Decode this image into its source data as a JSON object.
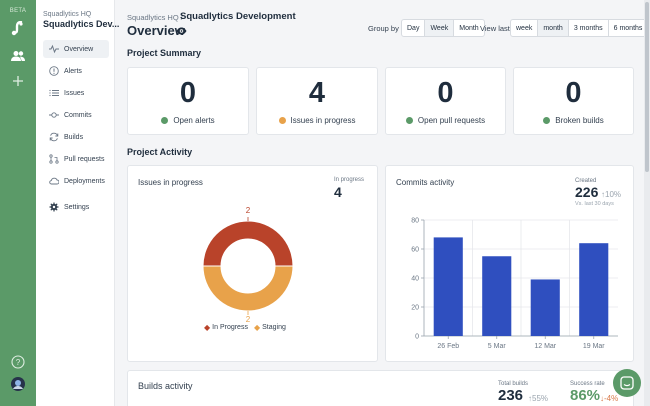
{
  "rail": {
    "beta": "BETA",
    "icons": [
      "logo-icon",
      "team-icon",
      "add-icon",
      "help-icon",
      "user-avatar"
    ]
  },
  "sidebar": {
    "org": "Squadlytics HQ",
    "project": "Squadlytics Dev...",
    "items": [
      {
        "label": "Overview",
        "icon": "pulse-icon",
        "active": true
      },
      {
        "label": "Alerts",
        "icon": "alert-icon"
      },
      {
        "label": "Issues",
        "icon": "list-icon"
      },
      {
        "label": "Commits",
        "icon": "commit-icon"
      },
      {
        "label": "Builds",
        "icon": "refresh-icon"
      },
      {
        "label": "Pull requests",
        "icon": "pull-request-icon"
      },
      {
        "label": "Deployments",
        "icon": "cloud-icon"
      },
      {
        "label": "Settings",
        "icon": "gear-icon"
      }
    ]
  },
  "header": {
    "breadcrumb": "Squadlytics HQ /",
    "title": "Squadlytics Development",
    "page_title": "Overview",
    "group_by_label": "Group by",
    "group_by": [
      "Day",
      "Week",
      "Month"
    ],
    "group_by_selected": "Week",
    "view_last_label": "View last",
    "view_last": [
      "week",
      "month",
      "3 months",
      "6 months"
    ],
    "view_last_selected": "month"
  },
  "summary": {
    "title": "Project Summary",
    "cards": [
      {
        "value": "0",
        "label": "Open alerts",
        "color": "#5b9a68"
      },
      {
        "value": "4",
        "label": "Issues in progress",
        "color": "#e8a24a"
      },
      {
        "value": "0",
        "label": "Open pull requests",
        "color": "#5b9a68"
      },
      {
        "value": "0",
        "label": "Broken builds",
        "color": "#5b9a68"
      }
    ]
  },
  "activity": {
    "title": "Project Activity",
    "issues": {
      "title": "Issues in progress",
      "stat_label": "In progress",
      "stat_value": "4",
      "legend": [
        {
          "label": "In Progress",
          "color": "#b9432a"
        },
        {
          "label": "Staging",
          "color": "#e8a24a"
        }
      ]
    },
    "commits": {
      "title": "Commits activity",
      "stat_label": "Created",
      "stat_value": "226",
      "delta": "↑10%",
      "sub": "Vs. last 30 days",
      "bar_color": "#2f4fbf"
    }
  },
  "builds": {
    "title": "Builds activity",
    "total_label": "Total builds",
    "total_value": "236",
    "total_delta": "↑55%",
    "rate_label": "Success rate",
    "rate_value": "86%",
    "rate_delta": "↓-4%",
    "rate_color": "#5b9a68",
    "rate_delta_color": "#d97a4a"
  },
  "chart_data": [
    {
      "type": "pie",
      "title": "Issues in progress",
      "categories": [
        "In Progress",
        "Staging"
      ],
      "values": [
        2,
        2
      ],
      "data_labels": [
        "2",
        "2"
      ]
    },
    {
      "type": "bar",
      "title": "Commits activity",
      "categories": [
        "26 Feb",
        "5 Mar",
        "12 Mar",
        "19 Mar"
      ],
      "values": [
        68,
        55,
        39,
        64
      ],
      "ylim": [
        0,
        80
      ],
      "yticks": [
        "0",
        "20",
        "40",
        "60",
        "80"
      ],
      "grid": true
    }
  ]
}
